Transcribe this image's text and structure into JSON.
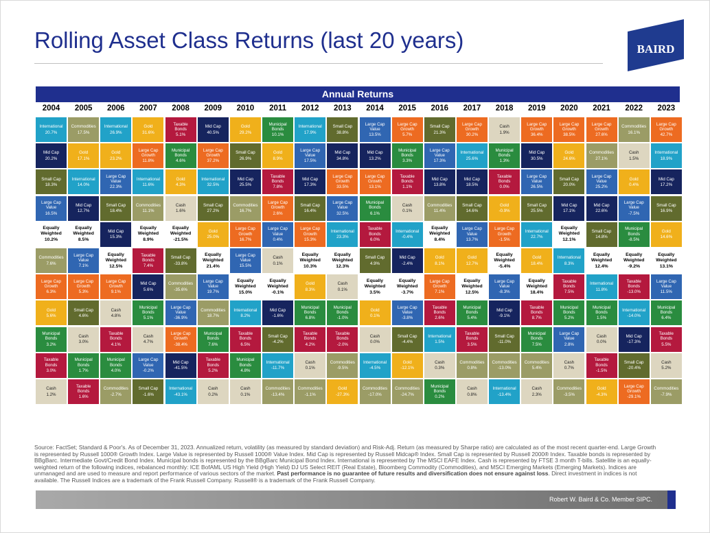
{
  "header": {
    "title": "Rolling Asset Class Returns (last 20 years)",
    "logo_text": "BAIRD"
  },
  "colors": {
    "International": "#21a2c8",
    "Commodities": "#9b9c66",
    "Gold": "#f0b01b",
    "Taxable Bonds": "#b4193e",
    "Mid Cap": "#16245e",
    "Municipal Bonds": "#2a8c3f",
    "Small Cap": "#616b2e",
    "Large Cap Value": "#3066b2",
    "Large Cap Growth": "#ed6b21",
    "Cash": "#ddd6c0",
    "Equally Weighted": "#ffffff",
    "brand_navy": "#1f2f8e"
  },
  "chart_data": {
    "type": "table",
    "title": "Annual Returns",
    "years": [
      "2004",
      "2005",
      "2006",
      "2007",
      "2008",
      "2009",
      "2010",
      "2011",
      "2012",
      "2013",
      "2014",
      "2015",
      "2016",
      "2017",
      "2018",
      "2019",
      "2020",
      "2021",
      "2022",
      "2023"
    ],
    "columns": [
      [
        [
          "International",
          "20.7%"
        ],
        [
          "Mid Cap",
          "20.2%"
        ],
        [
          "Small Cap",
          "18.3%"
        ],
        [
          "Large Cap Value",
          "16.5%"
        ],
        [
          "Equally Weighted",
          "10.2%"
        ],
        [
          "Commodities",
          "7.6%"
        ],
        [
          "Large Cap Growth",
          "6.3%"
        ],
        [
          "Gold",
          "5.6%"
        ],
        [
          "Municipal Bonds",
          "3.2%"
        ],
        [
          "Taxable Bonds",
          "3.0%"
        ],
        [
          "Cash",
          "1.2%"
        ]
      ],
      [
        [
          "Commodities",
          "17.5%"
        ],
        [
          "Gold",
          "17.1%"
        ],
        [
          "International",
          "14.0%"
        ],
        [
          "Mid Cap",
          "12.7%"
        ],
        [
          "Equally Weighted",
          "8.5%"
        ],
        [
          "Large Cap Value",
          "7.1%"
        ],
        [
          "Large Cap Growth",
          "5.3%"
        ],
        [
          "Small Cap",
          "4.6%"
        ],
        [
          "Cash",
          "3.0%"
        ],
        [
          "Municipal Bonds",
          "1.7%"
        ],
        [
          "Taxable Bonds",
          "1.6%"
        ]
      ],
      [
        [
          "International",
          "26.9%"
        ],
        [
          "Gold",
          "23.2%"
        ],
        [
          "Large Cap Value",
          "22.3%"
        ],
        [
          "Small Cap",
          "18.4%"
        ],
        [
          "Mid Cap",
          "15.3%"
        ],
        [
          "Equally Weighted",
          "12.5%"
        ],
        [
          "Large Cap Growth",
          "9.1%"
        ],
        [
          "Cash",
          "4.8%"
        ],
        [
          "Taxable Bonds",
          "4.1%"
        ],
        [
          "Municipal Bonds",
          "4.0%"
        ],
        [
          "Commodities",
          "-2.7%"
        ]
      ],
      [
        [
          "Gold",
          "31.6%"
        ],
        [
          "Large Cap Growth",
          "11.8%"
        ],
        [
          "International",
          "11.6%"
        ],
        [
          "Commodities",
          "11.1%"
        ],
        [
          "Equally Weighted",
          "8.9%"
        ],
        [
          "Taxable Bonds",
          "7.4%"
        ],
        [
          "Mid Cap",
          "5.6%"
        ],
        [
          "Municipal Bonds",
          "5.1%"
        ],
        [
          "Cash",
          "4.7%"
        ],
        [
          "Large Cap Value",
          "-0.2%"
        ],
        [
          "Small Cap",
          "-1.6%"
        ]
      ],
      [
        [
          "Taxable Bonds",
          "5.1%"
        ],
        [
          "Municipal Bonds",
          "4.6%"
        ],
        [
          "Gold",
          "4.3%"
        ],
        [
          "Cash",
          "1.6%"
        ],
        [
          "Equally Weighted",
          "-21.5%"
        ],
        [
          "Small Cap",
          "-33.8%"
        ],
        [
          "Commodities",
          "-35.6%"
        ],
        [
          "Large Cap Value",
          "-36.9%"
        ],
        [
          "Large Cap Growth",
          "-38.4%"
        ],
        [
          "Mid Cap",
          "-41.5%"
        ],
        [
          "International",
          "-43.1%"
        ]
      ],
      [
        [
          "Mid Cap",
          "40.5%"
        ],
        [
          "Large Cap Growth",
          "37.2%"
        ],
        [
          "International",
          "32.5%"
        ],
        [
          "Small Cap",
          "27.2%"
        ],
        [
          "Gold",
          "25.0%"
        ],
        [
          "Equally Weighted",
          "21.4%"
        ],
        [
          "Large Cap Value",
          "19.7%"
        ],
        [
          "Commodities",
          "18.7%"
        ],
        [
          "Municipal Bonds",
          "7.6%"
        ],
        [
          "Taxable Bonds",
          "5.2%"
        ],
        [
          "Cash",
          "0.2%"
        ]
      ],
      [
        [
          "Gold",
          "29.2%"
        ],
        [
          "Small Cap",
          "26.9%"
        ],
        [
          "Mid Cap",
          "25.5%"
        ],
        [
          "Commodities",
          "16.7%"
        ],
        [
          "Large Cap Growth",
          "16.7%"
        ],
        [
          "Large Cap Value",
          "15.5%"
        ],
        [
          "Equally Weighted",
          "15.0%"
        ],
        [
          "International",
          "8.2%"
        ],
        [
          "Taxable Bonds",
          "6.5%"
        ],
        [
          "Municipal Bonds",
          "4.8%"
        ],
        [
          "Cash",
          "0.1%"
        ]
      ],
      [
        [
          "Municipal Bonds",
          "10.1%"
        ],
        [
          "Gold",
          "8.9%"
        ],
        [
          "Taxable Bonds",
          "7.8%"
        ],
        [
          "Large Cap Growth",
          "2.6%"
        ],
        [
          "Large Cap Value",
          "0.4%"
        ],
        [
          "Cash",
          "0.1%"
        ],
        [
          "Equally Weighted",
          "-0.1%"
        ],
        [
          "Mid Cap",
          "-1.6%"
        ],
        [
          "Small Cap",
          "-4.2%"
        ],
        [
          "International",
          "-11.7%"
        ],
        [
          "Commodities",
          "-13.4%"
        ]
      ],
      [
        [
          "International",
          "17.9%"
        ],
        [
          "Large Cap Value",
          "17.5%"
        ],
        [
          "Mid Cap",
          "17.3%"
        ],
        [
          "Small Cap",
          "16.4%"
        ],
        [
          "Large Cap Growth",
          "15.3%"
        ],
        [
          "Equally Weighted",
          "10.3%"
        ],
        [
          "Gold",
          "8.3%"
        ],
        [
          "Municipal Bonds",
          "6.8%"
        ],
        [
          "Taxable Bonds",
          "4.2%"
        ],
        [
          "Cash",
          "0.1%"
        ],
        [
          "Commodities",
          "-1.1%"
        ]
      ],
      [
        [
          "Small Cap",
          "38.8%"
        ],
        [
          "Mid Cap",
          "34.8%"
        ],
        [
          "Large Cap Growth",
          "33.5%"
        ],
        [
          "Large Cap Value",
          "32.5%"
        ],
        [
          "International",
          "23.3%"
        ],
        [
          "Equally Weighted",
          "12.3%"
        ],
        [
          "Cash",
          "0.1%"
        ],
        [
          "Municipal Bonds",
          "-1.0%"
        ],
        [
          "Taxable Bonds",
          "-2.0%"
        ],
        [
          "Commodities",
          "-9.5%"
        ],
        [
          "Gold",
          "-27.3%"
        ]
      ],
      [
        [
          "Large Cap Value",
          "13.5%"
        ],
        [
          "Mid Cap",
          "13.2%"
        ],
        [
          "Large Cap Growth",
          "13.1%"
        ],
        [
          "Municipal Bonds",
          "6.1%"
        ],
        [
          "Taxable Bonds",
          "6.0%"
        ],
        [
          "Small Cap",
          "4.9%"
        ],
        [
          "Equally Weighted",
          "3.5%"
        ],
        [
          "Gold",
          "0.1%"
        ],
        [
          "Cash",
          "0.0%"
        ],
        [
          "International",
          "-4.5%"
        ],
        [
          "Commodities",
          "-17.0%"
        ]
      ],
      [
        [
          "Large Cap Growth",
          "5.7%"
        ],
        [
          "Municipal Bonds",
          "3.3%"
        ],
        [
          "Taxable Bonds",
          "1.1%"
        ],
        [
          "Cash",
          "0.1%"
        ],
        [
          "International",
          "-0.4%"
        ],
        [
          "Mid Cap",
          "-2.4%"
        ],
        [
          "Equally Weighted",
          "-3.7%"
        ],
        [
          "Large Cap Value",
          "-3.8%"
        ],
        [
          "Small Cap",
          "-4.4%"
        ],
        [
          "Gold",
          "-12.1%"
        ],
        [
          "Commodities",
          "-24.7%"
        ]
      ],
      [
        [
          "Small Cap",
          "21.3%"
        ],
        [
          "Large Cap Value",
          "17.3%"
        ],
        [
          "Mid Cap",
          "13.8%"
        ],
        [
          "Commodities",
          "11.4%"
        ],
        [
          "Equally Weighted",
          "8.4%"
        ],
        [
          "Gold",
          "8.1%"
        ],
        [
          "Large Cap Growth",
          "7.1%"
        ],
        [
          "Taxable Bonds",
          "2.6%"
        ],
        [
          "International",
          "1.5%"
        ],
        [
          "Cash",
          "0.3%"
        ],
        [
          "Municipal Bonds",
          "0.2%"
        ]
      ],
      [
        [
          "Large Cap Growth",
          "30.2%"
        ],
        [
          "International",
          "25.6%"
        ],
        [
          "Mid Cap",
          "18.5%"
        ],
        [
          "Small Cap",
          "14.6%"
        ],
        [
          "Large Cap Value",
          "13.7%"
        ],
        [
          "Gold",
          "12.7%"
        ],
        [
          "Equally Weighted",
          "12.5%"
        ],
        [
          "Municipal Bonds",
          "5.4%"
        ],
        [
          "Taxable Bonds",
          "3.5%"
        ],
        [
          "Commodities",
          "0.8%"
        ],
        [
          "Cash",
          "0.8%"
        ]
      ],
      [
        [
          "Cash",
          "1.9%"
        ],
        [
          "Municipal Bonds",
          "1.3%"
        ],
        [
          "Taxable Bonds",
          "0.0%"
        ],
        [
          "Gold",
          "-0.9%"
        ],
        [
          "Large Cap Growth",
          "-1.5%"
        ],
        [
          "Equally Weighted",
          "-5.4%"
        ],
        [
          "Large Cap Value",
          "-8.3%"
        ],
        [
          "Mid Cap",
          "-9.1%"
        ],
        [
          "Small Cap",
          "-11.0%"
        ],
        [
          "Commodities",
          "-13.0%"
        ],
        [
          "International",
          "-13.4%"
        ]
      ],
      [
        [
          "Large Cap Growth",
          "36.4%"
        ],
        [
          "Mid Cap",
          "30.5%"
        ],
        [
          "Large Cap Value",
          "26.5%"
        ],
        [
          "Small Cap",
          "25.5%"
        ],
        [
          "International",
          "22.7%"
        ],
        [
          "Gold",
          "18.4%"
        ],
        [
          "Equally Weighted",
          "18.4%"
        ],
        [
          "Taxable Bonds",
          "8.7%"
        ],
        [
          "Municipal Bonds",
          "7.5%"
        ],
        [
          "Commodities",
          "5.4%"
        ],
        [
          "Cash",
          "2.3%"
        ]
      ],
      [
        [
          "Large Cap Growth",
          "38.5%"
        ],
        [
          "Gold",
          "24.6%"
        ],
        [
          "Small Cap",
          "20.0%"
        ],
        [
          "Mid Cap",
          "17.1%"
        ],
        [
          "Equally Weighted",
          "12.1%"
        ],
        [
          "International",
          "8.3%"
        ],
        [
          "Taxable Bonds",
          "7.5%"
        ],
        [
          "Municipal Bonds",
          "5.2%"
        ],
        [
          "Large Cap Value",
          "2.8%"
        ],
        [
          "Cash",
          "0.7%"
        ],
        [
          "Commodities",
          "-3.5%"
        ]
      ],
      [
        [
          "Large Cap Growth",
          "27.6%"
        ],
        [
          "Commodities",
          "27.1%"
        ],
        [
          "Large Cap Value",
          "25.2%"
        ],
        [
          "Mid Cap",
          "22.6%"
        ],
        [
          "Small Cap",
          "14.8%"
        ],
        [
          "Equally Weighted",
          "12.4%"
        ],
        [
          "International",
          "11.8%"
        ],
        [
          "Municipal Bonds",
          "1.5%"
        ],
        [
          "Cash",
          "0.0%"
        ],
        [
          "Taxable Bonds",
          "-1.5%"
        ],
        [
          "Gold",
          "-4.3%"
        ]
      ],
      [
        [
          "Commodities",
          "16.1%"
        ],
        [
          "Cash",
          "1.5%"
        ],
        [
          "Gold",
          "0.4%"
        ],
        [
          "Large Cap Value",
          "-7.5%"
        ],
        [
          "Municipal Bonds",
          "-8.5%"
        ],
        [
          "Equally Weighted",
          "-9.2%"
        ],
        [
          "Taxable Bonds",
          "-13.0%"
        ],
        [
          "International",
          "-14.0%"
        ],
        [
          "Mid Cap",
          "-17.3%"
        ],
        [
          "Small Cap",
          "-20.4%"
        ],
        [
          "Large Cap Growth",
          "-29.1%"
        ]
      ],
      [
        [
          "Large Cap Growth",
          "42.7%"
        ],
        [
          "International",
          "18.9%"
        ],
        [
          "Mid Cap",
          "17.2%"
        ],
        [
          "Small Cap",
          "16.9%"
        ],
        [
          "Gold",
          "14.6%"
        ],
        [
          "Equally Weighted",
          "13.1%"
        ],
        [
          "Large Cap Value",
          "11.5%"
        ],
        [
          "Municipal Bonds",
          "6.4%"
        ],
        [
          "Taxable Bonds",
          "5.5%"
        ],
        [
          "Cash",
          "5.2%"
        ],
        [
          "Commodities",
          "-7.9%"
        ]
      ]
    ]
  },
  "source": {
    "text": "Source: FactSet; Standard & Poor's. As of December 31, 2023. Annualized return, volatility (as measured by standard deviation) and Risk-Adj. Return (as measured by Sharpe ratio) are calculated as of the most recent quarter-end. Large Growth is represented by Russell 1000® Growth Index. Large Value is represented by Russell 1000® Value Index. Mid Cap is represented by Russell Midcap® Index. Small Cap is represented by Russell 2000® Index. Taxable bonds is represented by BBgBarc. Intermediate Govt/Credit Bond Index. Municipal bonds is represented by the BBgBarc Municipal Bond Index. International is represented by The MSCI EAFE Index. Cash is represented by FTSE 3 month T-bills. Satellite is an equally-weighted return of the following indices, rebalanced monthly: ICE BofAML US High Yield (High Yield) DJ US Select REIT (Real Estate), Bloomberg Commodity (Commodities), and MSCI Emerging Markets (Emerging Markets). Indices are unmanaged and are used to measure and report performance of various sectors of the market. ",
    "bold": "Past performance is no guarantee of future results and diversification does not ensure against loss",
    "tail": ". Direct investment in indices is not available. The Russell Indices are a trademark of the Frank Russell Company. Russell® is a trademark of the Frank Russell Company."
  },
  "footer": {
    "text": "Robert W. Baird & Co. Member SIPC."
  }
}
